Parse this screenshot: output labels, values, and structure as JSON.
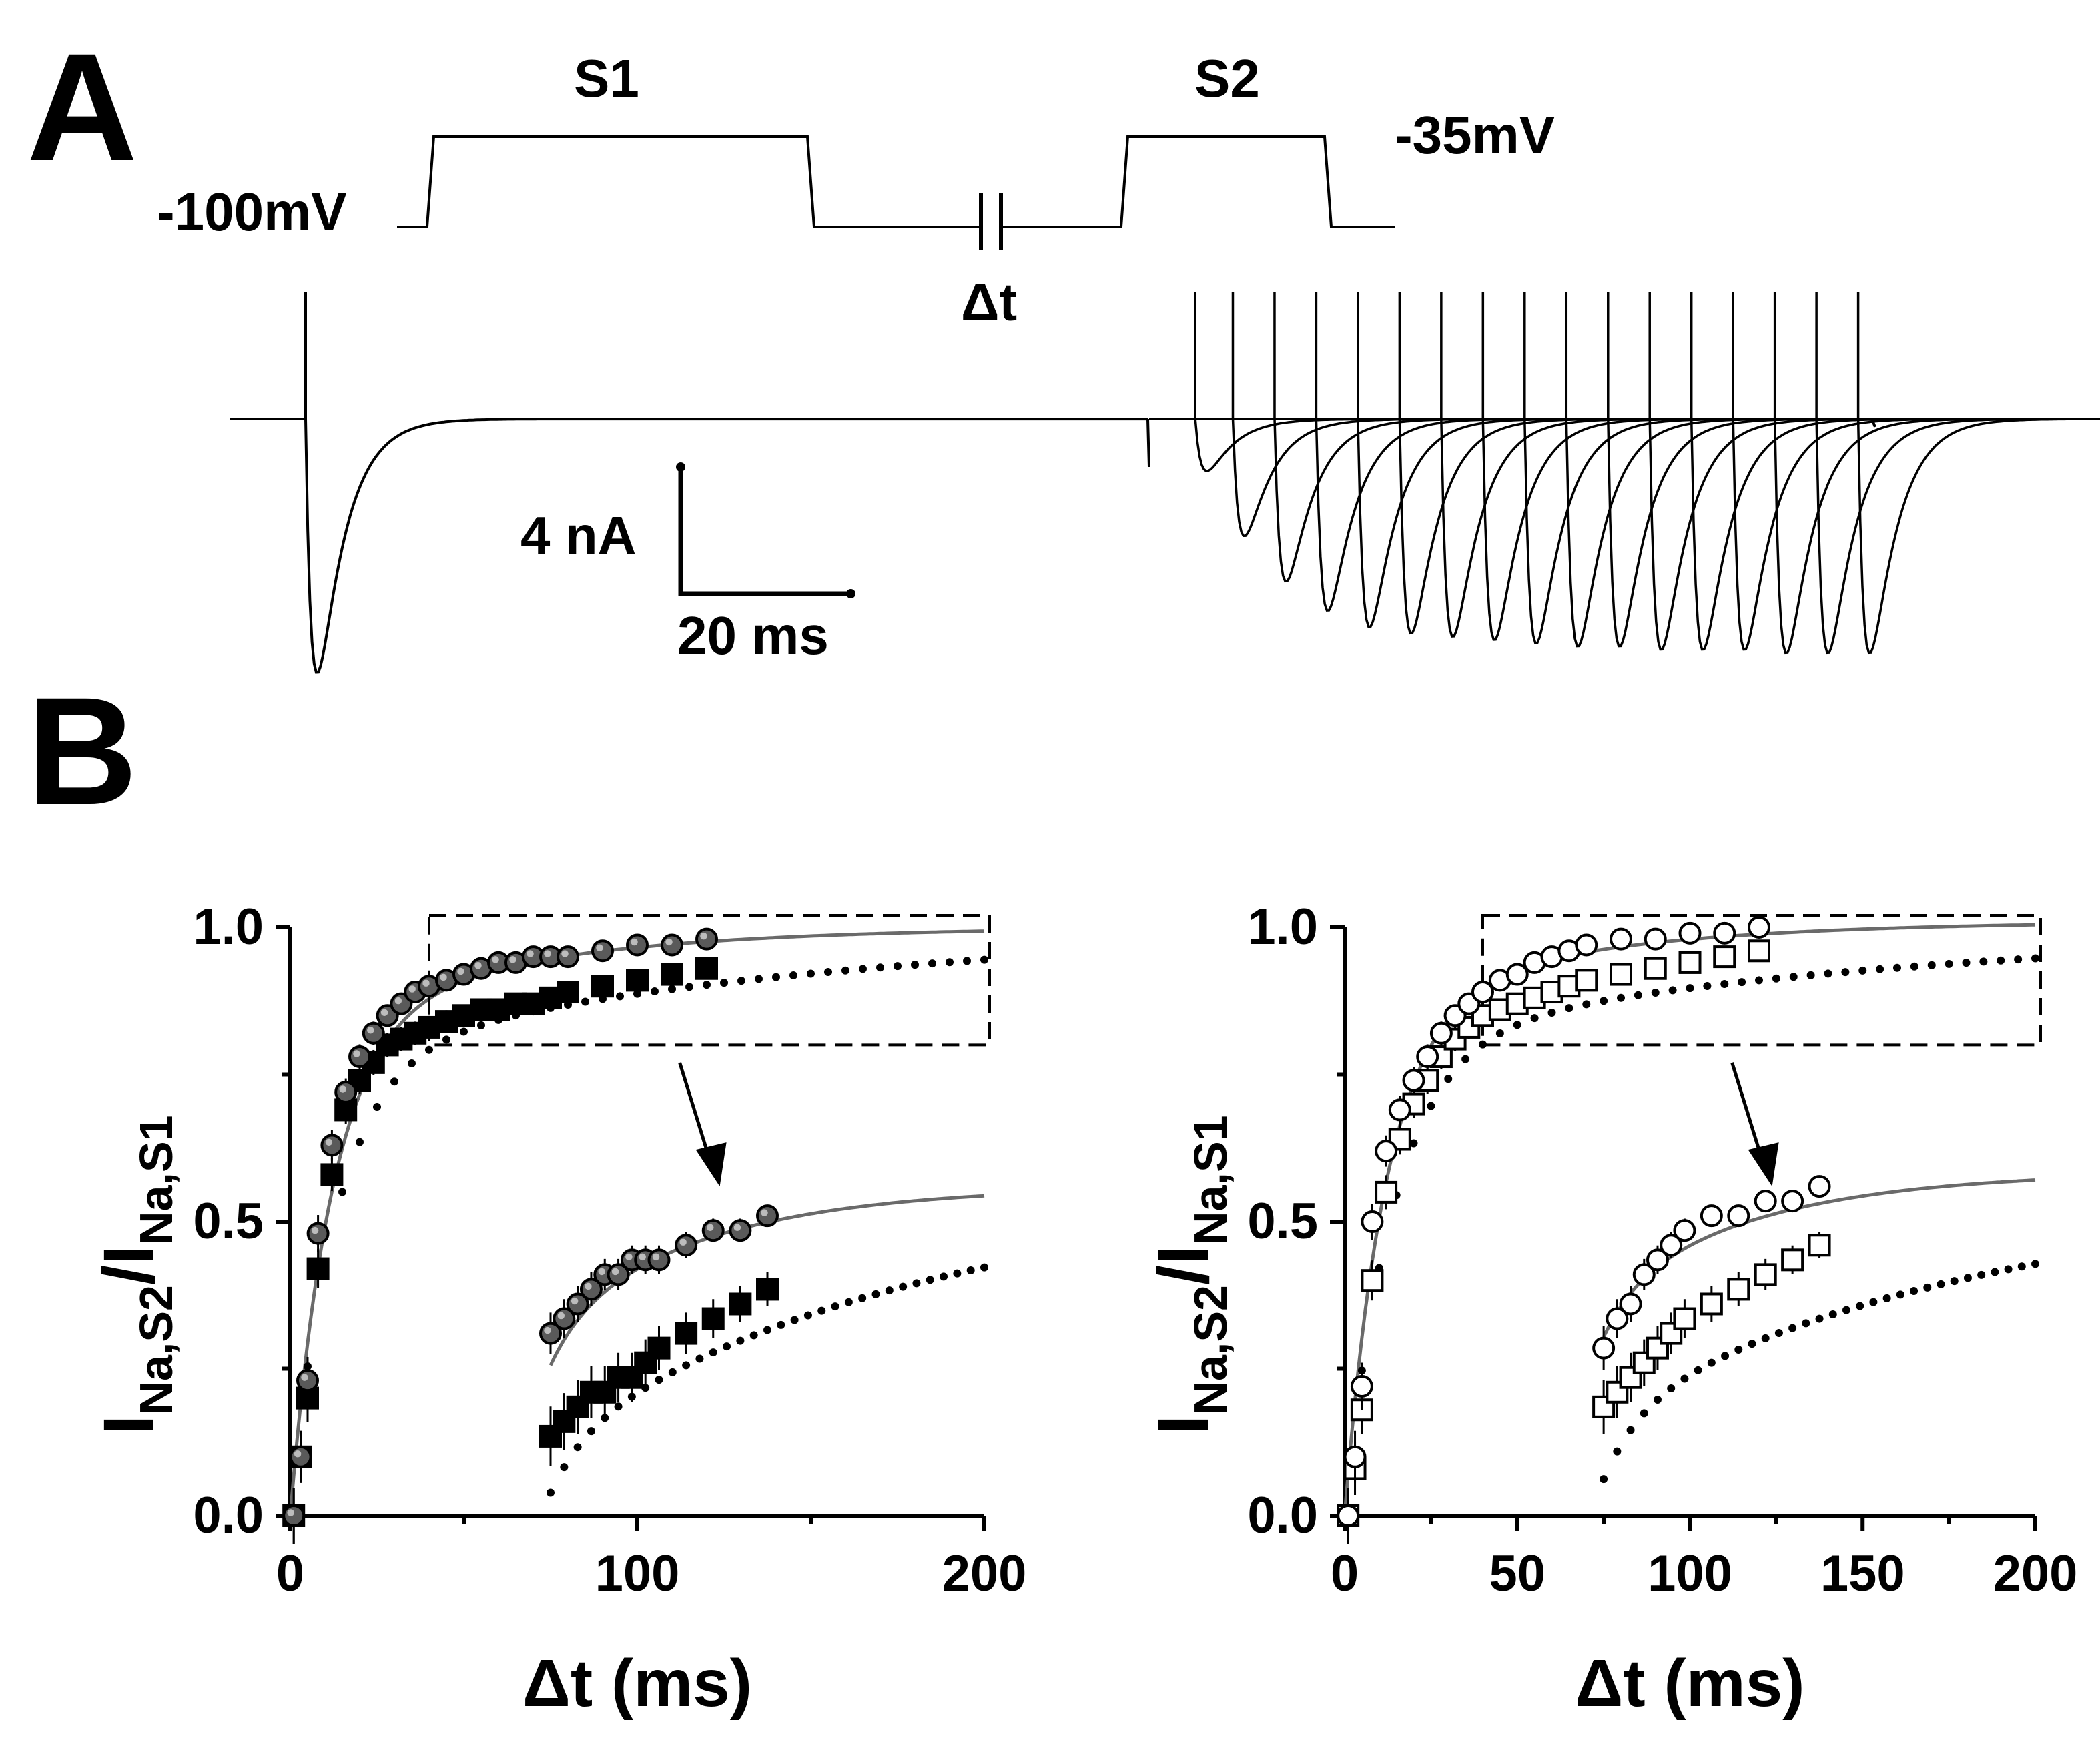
{
  "panel_a": {
    "label": "A",
    "protocol": {
      "s1_label": "S1",
      "s2_label": "S2",
      "holding_label": "-100mV",
      "test_label": "-35mV",
      "interval_label": "Δt"
    },
    "scalebar": {
      "current_label": "4 nA",
      "time_label": "20 ms",
      "current_value_nA": 4,
      "time_value_ms": 20
    },
    "traces": {
      "s1_peak_nA": -7.8,
      "s2_intervals_ms": [
        0.5,
        5,
        10,
        15,
        20,
        25,
        30,
        35,
        40,
        45,
        50,
        55,
        60,
        65,
        70,
        75,
        80
      ],
      "s2_peaks_nA": [
        -1.6,
        -3.6,
        -5.0,
        -5.9,
        -6.4,
        -6.6,
        -6.7,
        -6.8,
        -6.9,
        -7.0,
        -7.0,
        -7.1,
        -7.1,
        -7.1,
        -7.2,
        -7.2,
        -7.2
      ]
    }
  },
  "panel_b": {
    "label": "B"
  },
  "chart_data": [
    {
      "type": "scatter",
      "title": "",
      "xlabel": "Δt (ms)",
      "ylabel": "I_{Na,S2}/I_{Na,S1}",
      "xlim": [
        0,
        200
      ],
      "ylim": [
        0,
        1
      ],
      "xticks": [
        0,
        100,
        200
      ],
      "yticks": [
        "0.0",
        "0.5",
        "1.0"
      ],
      "series": [
        {
          "name": "filled circles",
          "marker": "circle-gray",
          "x": [
            1,
            3,
            5,
            8,
            12,
            16,
            20,
            24,
            28,
            32,
            36,
            40,
            45,
            50,
            55,
            60,
            65,
            70,
            75,
            80,
            90,
            100,
            110,
            120
          ],
          "y": [
            0.0,
            0.1,
            0.23,
            0.48,
            0.63,
            0.72,
            0.78,
            0.82,
            0.85,
            0.87,
            0.89,
            0.9,
            0.91,
            0.92,
            0.93,
            0.94,
            0.94,
            0.95,
            0.95,
            0.95,
            0.96,
            0.97,
            0.97,
            0.98
          ]
        },
        {
          "name": "filled squares",
          "marker": "square-black",
          "x": [
            1,
            3,
            5,
            8,
            12,
            16,
            20,
            24,
            28,
            32,
            36,
            40,
            45,
            50,
            55,
            60,
            65,
            70,
            75,
            80,
            90,
            100,
            110,
            120
          ],
          "y": [
            0.0,
            0.1,
            0.2,
            0.42,
            0.58,
            0.69,
            0.74,
            0.77,
            0.8,
            0.81,
            0.82,
            0.83,
            0.84,
            0.85,
            0.86,
            0.86,
            0.87,
            0.87,
            0.88,
            0.89,
            0.9,
            0.91,
            0.92,
            0.93
          ]
        }
      ],
      "fits": [
        {
          "name": "fit circles",
          "style": "solid-gray",
          "tau_ms": 12,
          "a_fast": 0.82,
          "tau_slow_ms": 60,
          "plateau": 1.0
        },
        {
          "name": "fit squares",
          "style": "dotted-black",
          "tau_ms": 13,
          "a_fast": 0.77,
          "tau_slow_ms": 140,
          "plateau": 1.0
        }
      ],
      "inset": {
        "x_range": [
          40,
          200
        ],
        "y_range": [
          0.8,
          1.0
        ],
        "arrow": true
      }
    },
    {
      "type": "scatter",
      "title": "",
      "xlabel": "Δt (ms)",
      "ylabel": "I_{Na,S2}/I_{Na,S1}",
      "xlim": [
        0,
        200
      ],
      "ylim": [
        0,
        1
      ],
      "xticks": [
        0,
        50,
        100,
        150,
        200
      ],
      "yticks": [
        "0.0",
        "0.5",
        "1.0"
      ],
      "series": [
        {
          "name": "open circles",
          "marker": "circle-open",
          "x": [
            1,
            3,
            5,
            8,
            12,
            16,
            20,
            24,
            28,
            32,
            36,
            40,
            45,
            50,
            55,
            60,
            65,
            70,
            80,
            90,
            100,
            110,
            120
          ],
          "y": [
            0.0,
            0.1,
            0.22,
            0.5,
            0.62,
            0.69,
            0.74,
            0.78,
            0.82,
            0.85,
            0.87,
            0.89,
            0.91,
            0.92,
            0.94,
            0.95,
            0.96,
            0.97,
            0.98,
            0.98,
            0.99,
            0.99,
            1.0
          ]
        },
        {
          "name": "open squares",
          "marker": "square-open",
          "x": [
            1,
            3,
            5,
            8,
            12,
            16,
            20,
            24,
            28,
            32,
            36,
            40,
            45,
            50,
            55,
            60,
            65,
            70,
            80,
            90,
            100,
            110,
            120
          ],
          "y": [
            0.0,
            0.08,
            0.18,
            0.4,
            0.55,
            0.64,
            0.7,
            0.74,
            0.78,
            0.81,
            0.83,
            0.85,
            0.86,
            0.87,
            0.88,
            0.89,
            0.9,
            0.91,
            0.92,
            0.93,
            0.94,
            0.95,
            0.96
          ]
        }
      ],
      "fits": [
        {
          "name": "fit circles",
          "style": "solid-gray",
          "tau_ms": 12,
          "a_fast": 0.85,
          "tau_slow_ms": 60,
          "plateau": 1.01
        },
        {
          "name": "fit squares",
          "style": "dotted-black",
          "tau_ms": 14,
          "a_fast": 0.8,
          "tau_slow_ms": 150,
          "plateau": 1.0
        }
      ],
      "inset": {
        "x_range": [
          40,
          200
        ],
        "y_range": [
          0.8,
          1.0
        ],
        "arrow": true
      }
    }
  ]
}
